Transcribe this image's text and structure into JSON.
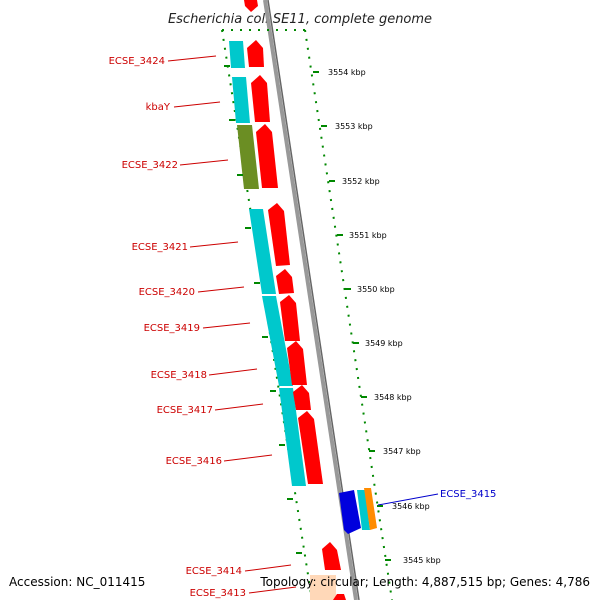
{
  "title": "Escherichia coli SE11, complete genome",
  "footer": {
    "accession": "Accession: NC_011415",
    "topology": "Topology: circular; Length: 4,887,515 bp; Genes: 4,786"
  },
  "colors": {
    "forward_gene": "#ff0000",
    "reverse_gene": "#00c8cc",
    "olive_gene": "#6b8e23",
    "blue_gene": "#0000dd",
    "orange_gene": "#ff8c00",
    "peach_gene": "#ffd8b8",
    "backbone": "#888888",
    "ticks": "#008800",
    "label_red": "#cc0000",
    "label_blue": "#0000cc"
  },
  "scale_ticks": [
    "3554 kbp",
    "3553 kbp",
    "3552 kbp",
    "3551 kbp",
    "3550 kbp",
    "3549 kbp",
    "3548 kbp",
    "3547 kbp",
    "3546 kbp",
    "3545 kbp"
  ],
  "gene_labels": [
    "ECSE_3424",
    "kbaY",
    "ECSE_3422",
    "ECSE_3421",
    "ECSE_3420",
    "ECSE_3419",
    "ECSE_3418",
    "ECSE_3417",
    "ECSE_3416",
    "ECSE_3415",
    "ECSE_3414",
    "ECSE_3413"
  ]
}
